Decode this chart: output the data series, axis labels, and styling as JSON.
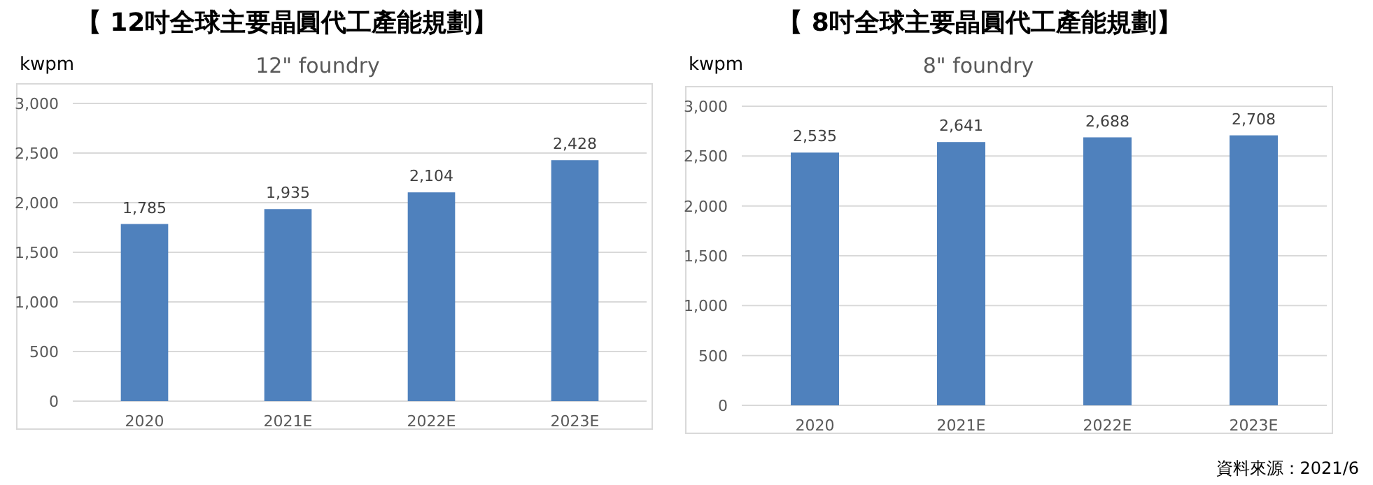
{
  "chart_data": [
    {
      "type": "bar",
      "title": "【 12吋全球主要晶圓代工產能規劃】",
      "subtitle": "12\" foundry",
      "ylabel": "kwpm",
      "categories": [
        "2020",
        "2021E",
        "2022E",
        "2023E"
      ],
      "values": [
        1785,
        1935,
        2104,
        2428
      ],
      "value_labels": [
        "1,785",
        "1,935",
        "2,104",
        "2,428"
      ],
      "color": "#4f81bd",
      "ylim": [
        0,
        3000
      ],
      "yticks": [
        {
          "value": 0,
          "label": "0"
        },
        {
          "value": 500,
          "label": "500"
        },
        {
          "value": 1000,
          "label": "1,000"
        },
        {
          "value": 1500,
          "label": "1,500"
        },
        {
          "value": 2000,
          "label": "2,000"
        },
        {
          "value": 2500,
          "label": "2,500"
        },
        {
          "value": 3000,
          "label": "3,000"
        }
      ],
      "grid": "y"
    },
    {
      "type": "bar",
      "title": "【 8吋全球主要晶圓代工產能規劃】",
      "subtitle": "8\" foundry",
      "ylabel": "kwpm",
      "categories": [
        "2020",
        "2021E",
        "2022E",
        "2023E"
      ],
      "values": [
        2535,
        2641,
        2688,
        2708
      ],
      "value_labels": [
        "2,535",
        "2,641",
        "2,688",
        "2,708"
      ],
      "color": "#4f81bd",
      "ylim": [
        0,
        3000
      ],
      "yticks": [
        {
          "value": 0,
          "label": "0"
        },
        {
          "value": 500,
          "label": "500"
        },
        {
          "value": 1000,
          "label": "1,000"
        },
        {
          "value": 1500,
          "label": "1,500"
        },
        {
          "value": 2000,
          "label": "2,000"
        },
        {
          "value": 2500,
          "label": "2,500"
        },
        {
          "value": 3000,
          "label": "3,000"
        }
      ],
      "grid": "y",
      "annotations": [
        "資料來源：2021/6"
      ]
    }
  ]
}
